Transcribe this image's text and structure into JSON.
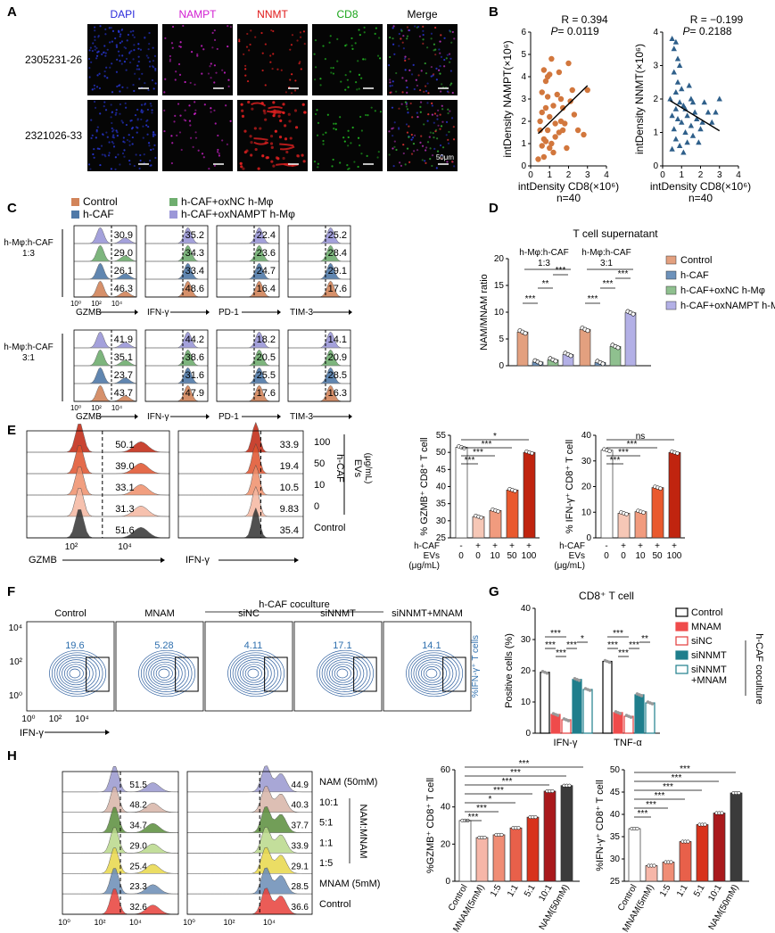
{
  "panels": [
    "A",
    "B",
    "C",
    "D",
    "E",
    "F",
    "G",
    "H"
  ],
  "A": {
    "channels": [
      {
        "label": "DAPI",
        "color": "#2a2adb"
      },
      {
        "label": "NAMPT",
        "color": "#d21fd2"
      },
      {
        "label": "NNMT",
        "color": "#e01818"
      },
      {
        "label": "CD8",
        "color": "#1aa51a"
      },
      {
        "label": "Merge",
        "color": "#000000"
      }
    ],
    "samples": [
      "2305231-26",
      "2321026-33"
    ],
    "scalebar": "50μm"
  },
  "B": {
    "plots": [
      {
        "R": "R = 0.394",
        "P": "P",
        "Pval": " = 0.0119",
        "ylabel": "intDensity NAMPT(×10⁶)",
        "xlabel": "intDensity CD8(×10⁶)",
        "n": "n=40",
        "color": "#d2773d",
        "xticks": [
          "0",
          "1",
          "2",
          "3",
          "4"
        ],
        "yticks": [
          "0",
          "1",
          "2",
          "3",
          "4",
          "5",
          "6"
        ],
        "xlim": [
          0,
          4
        ],
        "ylim": [
          0,
          6
        ],
        "fit": [
          [
            0.4,
            1.45
          ],
          [
            3.0,
            3.6
          ]
        ],
        "points": [
          [
            0.5,
            2.0
          ],
          [
            0.6,
            0.9
          ],
          [
            0.7,
            1.2
          ],
          [
            0.8,
            2.6
          ],
          [
            0.9,
            3.1
          ],
          [
            1.0,
            4.1
          ],
          [
            1.1,
            4.8
          ],
          [
            1.2,
            2.7
          ],
          [
            0.6,
            3.3
          ],
          [
            0.7,
            4.3
          ],
          [
            0.8,
            3.8
          ],
          [
            0.9,
            1.6
          ],
          [
            1.0,
            2.2
          ],
          [
            1.1,
            1.0
          ],
          [
            1.2,
            0.6
          ],
          [
            1.3,
            1.9
          ],
          [
            1.4,
            3.2
          ],
          [
            1.5,
            4.2
          ],
          [
            1.6,
            3.0
          ],
          [
            1.7,
            2.6
          ],
          [
            1.8,
            1.9
          ],
          [
            2.0,
            4.6
          ],
          [
            2.1,
            2.9
          ],
          [
            0.4,
            0.3
          ],
          [
            0.5,
            1.6
          ],
          [
            0.6,
            2.4
          ],
          [
            0.7,
            0.4
          ],
          [
            0.9,
            4.0
          ],
          [
            1.0,
            0.8
          ],
          [
            1.3,
            1.3
          ],
          [
            1.5,
            1.5
          ],
          [
            1.7,
            1.6
          ],
          [
            2.2,
            3.4
          ],
          [
            2.5,
            1.6
          ],
          [
            2.8,
            1.4
          ],
          [
            3.0,
            3.4
          ],
          [
            0.8,
            1.1
          ],
          [
            1.9,
            0.8
          ],
          [
            1.6,
            2.0
          ],
          [
            2.3,
            2.3
          ]
        ]
      },
      {
        "R": "R = −0.199",
        "P": "P",
        "Pval": " = 0.2188",
        "ylabel": "intDensity NNMT(×10⁶)",
        "xlabel": "intDensity CD8(×10⁶)",
        "n": "n=40",
        "color": "#2e5f8a",
        "xticks": [
          "0",
          "1",
          "2",
          "3",
          "4"
        ],
        "yticks": [
          "0",
          "1",
          "2",
          "3",
          "4"
        ],
        "xlim": [
          0,
          4
        ],
        "ylim": [
          0,
          4
        ],
        "fit": [
          [
            0.4,
            1.95
          ],
          [
            3.0,
            1.05
          ]
        ],
        "points": [
          [
            0.5,
            3.8
          ],
          [
            0.6,
            3.5
          ],
          [
            0.7,
            3.7
          ],
          [
            0.8,
            3.2
          ],
          [
            0.6,
            2.8
          ],
          [
            0.7,
            2.2
          ],
          [
            0.8,
            2.5
          ],
          [
            0.9,
            1.9
          ],
          [
            1.0,
            2.3
          ],
          [
            0.5,
            1.5
          ],
          [
            0.6,
            1.1
          ],
          [
            0.7,
            0.8
          ],
          [
            0.8,
            1.4
          ],
          [
            0.9,
            0.6
          ],
          [
            1.0,
            1.3
          ],
          [
            1.1,
            1.8
          ],
          [
            1.2,
            1.0
          ],
          [
            1.3,
            1.5
          ],
          [
            1.4,
            2.4
          ],
          [
            1.5,
            1.2
          ],
          [
            1.6,
            0.9
          ],
          [
            1.7,
            1.6
          ],
          [
            1.8,
            1.4
          ],
          [
            2.0,
            1.1
          ],
          [
            2.2,
            1.9
          ],
          [
            2.4,
            1.6
          ],
          [
            2.6,
            1.3
          ],
          [
            3.0,
            2.0
          ],
          [
            0.4,
            2.0
          ],
          [
            0.5,
            0.5
          ],
          [
            1.1,
            0.4
          ],
          [
            1.3,
            0.7
          ],
          [
            1.5,
            2.0
          ],
          [
            1.9,
            0.7
          ],
          [
            2.8,
            1.6
          ],
          [
            0.9,
            3.0
          ],
          [
            1.2,
            1.7
          ],
          [
            1.6,
            1.9
          ],
          [
            2.1,
            1.3
          ],
          [
            0.7,
            1.7
          ]
        ]
      }
    ]
  },
  "C": {
    "legend": [
      {
        "label": "Control",
        "color": "#d2845a"
      },
      {
        "label": "h-CAF",
        "color": "#4f79a8"
      },
      {
        "label": "h-CAF+oxNC h-Mφ",
        "color": "#6fae6f"
      },
      {
        "label": "h-CAF+oxNAMPT h-Mφ",
        "color": "#9b97d8"
      }
    ],
    "groups": [
      "h-Mφ:h-CAF\n1:3",
      "h-Mφ:h-CAF\n3:1"
    ],
    "markers": [
      "GZMB",
      "IFN-γ",
      "PD-1",
      "TIM-3"
    ],
    "xticks": [
      "10⁰",
      "10²",
      "10⁴"
    ],
    "values": [
      [
        [
          "30.9",
          "29.0",
          "26.1",
          "46.3"
        ],
        [
          "35.2",
          "34.3",
          "33.4",
          "48.6"
        ],
        [
          "22.4",
          "23.6",
          "24.7",
          "16.4"
        ],
        [
          "25.2",
          "28.4",
          "29.1",
          "17.6"
        ]
      ],
      [
        [
          "41.9",
          "35.1",
          "23.7",
          "43.7"
        ],
        [
          "44.2",
          "38.6",
          "31.6",
          "47.9"
        ],
        [
          "18.2",
          "20.5",
          "25.5",
          "17.6"
        ],
        [
          "14.1",
          "20.9",
          "28.5",
          "16.3"
        ]
      ]
    ]
  },
  "D": {
    "title": "T cell supernatant",
    "ylabel": "NAM/MNAM ratio",
    "yticks": [
      "0",
      "5",
      "10",
      "15",
      "20"
    ],
    "ylim": [
      0,
      20
    ],
    "groups": [
      "h-Mφ:h-CAF\n1:3",
      "h-Mφ:h-CAF\n3:1"
    ],
    "legend": [
      {
        "label": "Control",
        "color": "#e3a07f"
      },
      {
        "label": "h-CAF",
        "color": "#6d92bb"
      },
      {
        "label": "h-CAF+oxNC h-Mφ",
        "color": "#8fc08f"
      },
      {
        "label": "h-CAF+oxNAMPT h-Mφ",
        "color": "#b3b0e6"
      }
    ],
    "values": [
      [
        6.3,
        0.7,
        1.1,
        2.1
      ],
      [
        6.8,
        0.6,
        3.6,
        9.9
      ]
    ],
    "sig": [
      [
        "***",
        "**",
        "***"
      ],
      [
        "***",
        "***",
        "***"
      ]
    ]
  },
  "E": {
    "flow_values": [
      [
        "50.1",
        "39.0",
        "33.1",
        "31.3",
        "51.6"
      ],
      [
        "33.9",
        "19.4",
        "10.5",
        "9.83",
        "35.4"
      ]
    ],
    "row_labels": [
      "100",
      "50",
      "10",
      "0",
      "Control"
    ],
    "evs_label": "EVs\n(μg/mL)",
    "hcaf_label": "h-CAF",
    "markers": [
      "GZMB",
      "IFN-γ"
    ],
    "xticks": [
      "10²",
      "10⁴"
    ],
    "bars": [
      {
        "ylabel": "% GZMB⁺ CD8⁺ T cell",
        "yticks": [
          "25",
          "30",
          "35",
          "40",
          "45",
          "50",
          "55"
        ],
        "ylim": [
          25,
          55
        ],
        "values": [
          51.5,
          31.2,
          33.0,
          39.0,
          50.0
        ],
        "sig": [
          "***",
          "***",
          "***",
          "*"
        ]
      },
      {
        "ylabel": "% IFN-γ⁺ CD8⁺ T cell",
        "yticks": [
          "0",
          "10",
          "20",
          "30",
          "40"
        ],
        "ylim": [
          0,
          40
        ],
        "values": [
          34.2,
          9.6,
          10.2,
          19.6,
          33.3
        ],
        "sig": [
          "***",
          "***",
          "***",
          "ns"
        ]
      }
    ],
    "bar_colors": [
      "#ffffff",
      "#f6c7b6",
      "#f19b7e",
      "#e9592e",
      "#c0240f"
    ],
    "cond_rows": [
      {
        "label": "h-CAF",
        "vals": [
          "-",
          "+",
          "+",
          "+",
          "+"
        ]
      },
      {
        "label": "EVs",
        "vals": [
          "0",
          "0",
          "10",
          "50",
          "100"
        ]
      },
      {
        "label": "(μg/mL)",
        "vals": []
      }
    ]
  },
  "F": {
    "header": "h-CAF coculture",
    "plots": [
      {
        "title": "Control",
        "value": "19.6"
      },
      {
        "title": "MNAM",
        "value": "5.28"
      },
      {
        "title": "siNC",
        "value": "4.11"
      },
      {
        "title": "siNNMT",
        "value": "17.1"
      },
      {
        "title": "siNNMT+MNAM",
        "value": "14.1"
      }
    ],
    "xlabel": "IFN-γ",
    "yticks": [
      "10⁴",
      "10²",
      "10⁰"
    ],
    "xticks": [
      "10⁰",
      "10²",
      "10⁴"
    ],
    "side": "%IFN-γ⁺ T cells"
  },
  "G": {
    "title": "CD8⁺ T cell",
    "ylabel": "Positive cells (%)",
    "yticks": [
      "0",
      "10",
      "20",
      "30",
      "40"
    ],
    "ylim": [
      0,
      40
    ],
    "groups": [
      "IFN-γ",
      "TNF-α"
    ],
    "legend": [
      {
        "label": "Control",
        "color": "#ffffff",
        "edge": "#000"
      },
      {
        "label": "MNAM",
        "color": "#ef4b4b",
        "edge": "#ef4b4b"
      },
      {
        "label": "siNC",
        "color": "#ffffff",
        "edge": "#e23b3b"
      },
      {
        "label": "siNNMT",
        "color": "#1f7e8c",
        "edge": "#1f7e8c"
      },
      {
        "label": "siNNMT\n+MNAM",
        "color": "#ffffff",
        "edge": "#1f7e8c"
      }
    ],
    "side": "h-CAF coculture",
    "values": [
      [
        19.5,
        6.0,
        4.3,
        17.2,
        14.0
      ],
      [
        23.0,
        6.6,
        5.4,
        12.3,
        9.7
      ]
    ],
    "sig": [
      [
        "***",
        "***",
        "***",
        "***",
        "*"
      ],
      [
        "***",
        "***",
        "***",
        "***",
        "**"
      ]
    ]
  },
  "H": {
    "flow_values": [
      [
        "51.5",
        "48.2",
        "34.7",
        "29.0",
        "25.4",
        "23.3",
        "32.6"
      ],
      [
        "44.9",
        "40.3",
        "37.7",
        "33.9",
        "29.1",
        "28.5",
        "36.6"
      ]
    ],
    "row_labels": [
      "NAM (50mM)",
      "10:1",
      "5:1",
      "1:1",
      "1:5",
      "MNAM (5mM)",
      "Control"
    ],
    "ratio_label": "NAM:MNAM",
    "markers": [
      "GZMB",
      "IFN-γ"
    ],
    "xticks": [
      "10⁰",
      "10²",
      "10⁴"
    ],
    "fills": [
      "#9a98cf",
      "#d8b5a8",
      "#5a8e3c",
      "#b9d98a",
      "#e8d84a",
      "#6a8cb6",
      "#e8403a"
    ],
    "categories": [
      "Control",
      "MNAM(5mM)",
      "1:5",
      "1:1",
      "5:1",
      "10:1",
      "NAM(50mM)"
    ],
    "bar_colors": [
      "#ffffff",
      "#f6b6a8",
      "#f08d75",
      "#e8604a",
      "#d8331c",
      "#a9191c",
      "#3b3b3b"
    ],
    "bars": [
      {
        "ylabel": "%GZMB⁺ CD8⁺ T cell",
        "yticks": [
          "0",
          "20",
          "40",
          "60"
        ],
        "ylim": [
          0,
          60
        ],
        "values": [
          32.7,
          23.5,
          25.0,
          28.7,
          34.5,
          48.5,
          51.5
        ],
        "sig": [
          "***",
          "***",
          "*",
          "***",
          "***",
          "***",
          "***"
        ]
      },
      {
        "ylabel": "%IFN-γ⁺ CD8⁺ T cell",
        "yticks": [
          "25",
          "30",
          "35",
          "40",
          "45",
          "50"
        ],
        "ylim": [
          25,
          50
        ],
        "values": [
          36.8,
          28.5,
          29.3,
          33.9,
          37.7,
          40.3,
          44.8
        ],
        "sig": [
          "***",
          "***",
          "***",
          "***",
          "***",
          "***"
        ]
      }
    ]
  }
}
